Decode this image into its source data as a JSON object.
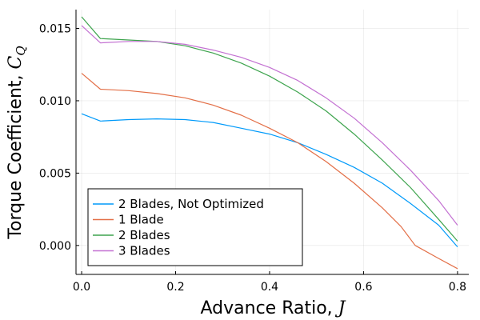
{
  "chart_data": {
    "type": "line",
    "xlabel": "Advance Ratio, ",
    "xlabel_symbol": "J",
    "ylabel": "Torque Coefficient, ",
    "ylabel_symbol": "C",
    "ylabel_subscript": "Q",
    "xlim": [
      -0.012,
      0.824
    ],
    "ylim": [
      -0.002,
      0.0163
    ],
    "xticks": [
      0.0,
      0.2,
      0.4,
      0.6,
      0.8
    ],
    "xtick_labels": [
      "0.0",
      "0.2",
      "0.4",
      "0.6",
      "0.8"
    ],
    "yticks": [
      0.0,
      0.005,
      0.01,
      0.015
    ],
    "ytick_labels": [
      "0.000",
      "0.005",
      "0.010",
      "0.015"
    ],
    "grid": true,
    "legend_position": "bottom-left",
    "series": [
      {
        "name": "2 Blades, Not Optimized",
        "color": "#009AFA",
        "x": [
          0.0,
          0.04,
          0.1,
          0.16,
          0.22,
          0.28,
          0.34,
          0.4,
          0.46,
          0.52,
          0.58,
          0.64,
          0.7,
          0.76,
          0.8
        ],
        "y": [
          0.0091,
          0.0086,
          0.0087,
          0.00875,
          0.0087,
          0.0085,
          0.0081,
          0.0077,
          0.0071,
          0.0063,
          0.0054,
          0.0043,
          0.0029,
          0.0014,
          -0.0001
        ]
      },
      {
        "name": "1 Blade",
        "color": "#E36F47",
        "x": [
          0.0,
          0.04,
          0.1,
          0.16,
          0.22,
          0.28,
          0.34,
          0.4,
          0.46,
          0.52,
          0.58,
          0.64,
          0.68,
          0.71,
          0.76,
          0.8
        ],
        "y": [
          0.0119,
          0.0108,
          0.0107,
          0.0105,
          0.0102,
          0.0097,
          0.009,
          0.0081,
          0.0071,
          0.0058,
          0.0043,
          0.0026,
          0.0013,
          0.0,
          -0.0009,
          -0.0016
        ]
      },
      {
        "name": "2 Blades",
        "color": "#3EA44E",
        "x": [
          0.0,
          0.04,
          0.1,
          0.16,
          0.22,
          0.28,
          0.34,
          0.4,
          0.46,
          0.52,
          0.58,
          0.64,
          0.7,
          0.76,
          0.8
        ],
        "y": [
          0.0158,
          0.0143,
          0.0142,
          0.0141,
          0.0138,
          0.0133,
          0.0126,
          0.0117,
          0.0106,
          0.0093,
          0.0077,
          0.0059,
          0.004,
          0.0018,
          0.0003
        ]
      },
      {
        "name": "3 Blades",
        "color": "#C371D2",
        "x": [
          0.0,
          0.04,
          0.1,
          0.16,
          0.22,
          0.28,
          0.34,
          0.4,
          0.46,
          0.52,
          0.58,
          0.64,
          0.7,
          0.76,
          0.8
        ],
        "y": [
          0.0152,
          0.014,
          0.0141,
          0.0141,
          0.0139,
          0.0135,
          0.013,
          0.0123,
          0.0114,
          0.0102,
          0.0088,
          0.0071,
          0.0052,
          0.0031,
          0.0014
        ]
      }
    ]
  }
}
